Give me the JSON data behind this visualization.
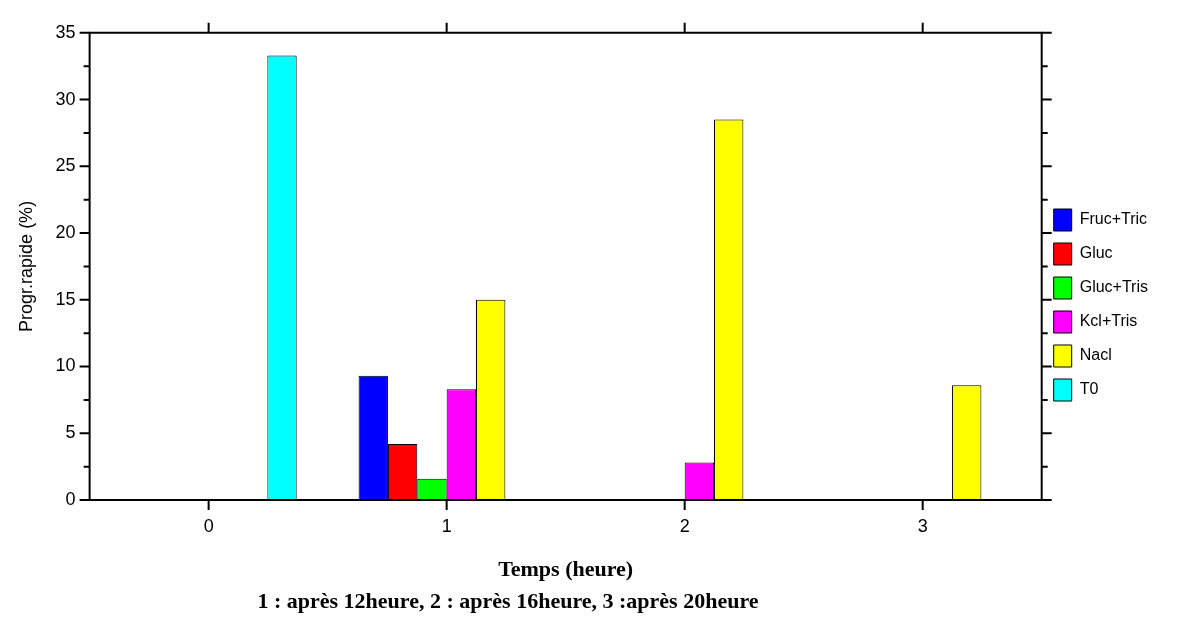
{
  "chart_data": {
    "type": "bar",
    "xlabel": "Temps (heure)",
    "ylabel": "Progr.rapide (%)",
    "annotations": [
      "1 : après 12heure, 2 : après 16heure, 3 :après 20heure"
    ],
    "categories": [
      "0",
      "1",
      "2",
      "3"
    ],
    "series": [
      {
        "name": "Fruc+Tric",
        "color": "#0000ff",
        "values": [
          null,
          9.3,
          null,
          null
        ]
      },
      {
        "name": "Gluc",
        "color": "#ff0000",
        "values": [
          null,
          4.2,
          null,
          null
        ]
      },
      {
        "name": "Gluc+Tris",
        "color": "#00ff00",
        "values": [
          null,
          1.6,
          null,
          null
        ]
      },
      {
        "name": "Kcl+Tris",
        "color": "#ff00ff",
        "values": [
          null,
          8.3,
          2.8,
          null
        ]
      },
      {
        "name": "Nacl",
        "color": "#ffff00",
        "values": [
          null,
          15.0,
          28.5,
          8.6
        ]
      },
      {
        "name": "T0",
        "color": "#00ffff",
        "values": [
          33.3,
          null,
          null,
          null
        ]
      }
    ],
    "ylim": [
      0,
      35
    ],
    "yticks": [
      0,
      {
        "value": 2.5,
        "label": null
      },
      5,
      {
        "value": 7.5,
        "label": null
      },
      10,
      {
        "value": 12.5,
        "label": null
      },
      15,
      {
        "value": 17.5,
        "label": null
      },
      20,
      {
        "value": 22.5,
        "label": null
      },
      25,
      {
        "value": 27.5,
        "label": null
      },
      30,
      {
        "value": 32.5,
        "label": null
      },
      35
    ],
    "grid": false,
    "legend": "right"
  }
}
